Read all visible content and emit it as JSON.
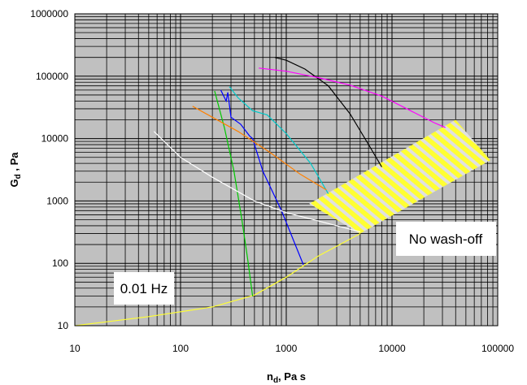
{
  "chart_data": {
    "type": "line",
    "xscale": "log",
    "yscale": "log",
    "xlim": [
      10,
      100000
    ],
    "ylim": [
      10,
      1000000
    ],
    "xlabel": "n",
    "xlabel_sub": "d",
    "xlabel_unit": ", Pa s",
    "ylabel": "G",
    "ylabel_sub": "d",
    "ylabel_unit": " , Pa",
    "x_ticks": [
      {
        "value": 10,
        "label": "10"
      },
      {
        "value": 100,
        "label": "100"
      },
      {
        "value": 1000,
        "label": "1000"
      },
      {
        "value": 10000,
        "label": "10000"
      },
      {
        "value": 100000,
        "label": "100000"
      }
    ],
    "y_ticks": [
      {
        "value": 10,
        "label": "10"
      },
      {
        "value": 100,
        "label": "100"
      },
      {
        "value": 1000,
        "label": "1000"
      },
      {
        "value": 10000,
        "label": "10000"
      },
      {
        "value": 100000,
        "label": "100000"
      },
      {
        "value": 1000000,
        "label": "1000000"
      }
    ],
    "grid": true,
    "plot_background": "#c0c0c0",
    "series": [
      {
        "color": "#ffff33",
        "x": [
          10,
          50,
          200,
          500,
          1000,
          2000,
          5000
        ],
        "y": [
          10,
          14,
          20,
          31,
          60,
          130,
          300
        ]
      },
      {
        "color": "#00c800",
        "x": [
          210,
          260,
          320,
          380,
          430,
          480
        ],
        "y": [
          58000,
          15000,
          3000,
          500,
          120,
          30
        ]
      },
      {
        "color": "#0000ff",
        "x": [
          240,
          270,
          280,
          300,
          370,
          450,
          480,
          600,
          900,
          1450
        ],
        "y": [
          60000,
          40000,
          55000,
          22000,
          17000,
          11000,
          10000,
          3000,
          700,
          95
        ]
      },
      {
        "color": "#00c8c8",
        "x": [
          290,
          350,
          480,
          660,
          1000,
          1700,
          2500
        ],
        "y": [
          68000,
          45000,
          28000,
          24000,
          12000,
          4000,
          1300
        ]
      },
      {
        "color": "#ff8000",
        "x": [
          130,
          200,
          350,
          700,
          1350,
          2400
        ],
        "y": [
          33000,
          22000,
          13000,
          6000,
          2700,
          1500
        ]
      },
      {
        "color": "#ffffff",
        "x": [
          56,
          100,
          200,
          500,
          1000,
          2000,
          5000
        ],
        "y": [
          13000,
          5000,
          2400,
          1000,
          650,
          480,
          320
        ]
      },
      {
        "color": "#000000",
        "x": [
          780,
          1000,
          1500,
          2500,
          4000,
          6000,
          8000
        ],
        "y": [
          200000,
          180000,
          130000,
          70000,
          25000,
          8000,
          3500
        ]
      },
      {
        "color": "#ff00ff",
        "x": [
          550,
          1000,
          2000,
          4000,
          8000,
          15000,
          25000,
          32000
        ],
        "y": [
          135000,
          120000,
          95000,
          72000,
          48000,
          28000,
          18000,
          15000
        ]
      }
    ],
    "regions": [
      {
        "label": "No wash-off",
        "fill": "#ffff33",
        "stripe": "#e0e0e0",
        "polygon": [
          [
            1650,
            900
          ],
          [
            40000,
            20000
          ],
          [
            85000,
            4500
          ],
          [
            5000,
            300
          ]
        ]
      }
    ],
    "annotations": [
      {
        "text": "No wash-off"
      },
      {
        "text": "0.01 Hz"
      }
    ]
  }
}
